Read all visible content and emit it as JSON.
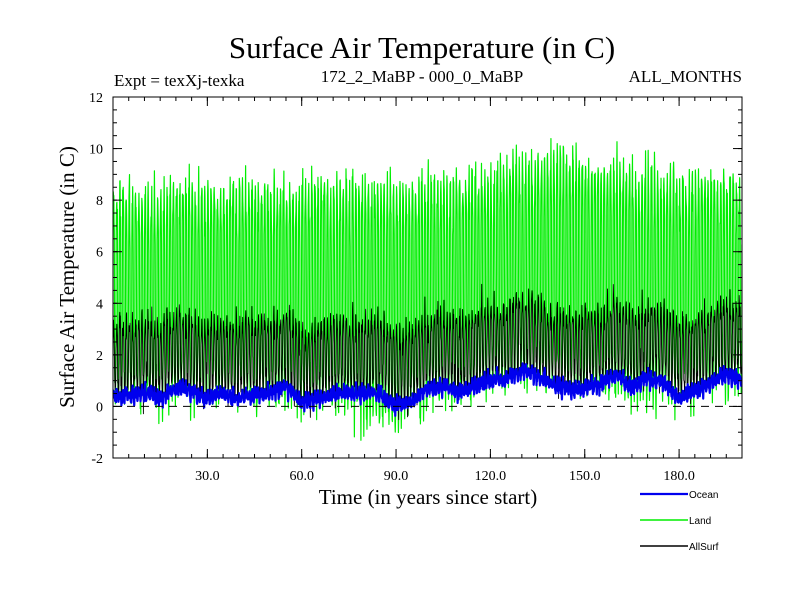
{
  "chart_data": {
    "type": "line",
    "title": "Surface Air Temperature (in C)",
    "subtitle_left": "Expt = texXj-texka",
    "subtitle_center": "172_2_MaBP - 000_0_MaBP",
    "subtitle_right": "ALL_MONTHS",
    "xlabel": "Time (in years since start)",
    "ylabel": "Surface Air Temperature (in C)",
    "xlim": [
      0,
      200
    ],
    "ylim": [
      -2,
      12
    ],
    "xticks": [
      30,
      60,
      90,
      120,
      150,
      180
    ],
    "xtick_labels": [
      "30.0",
      "60.0",
      "90.0",
      "120.0",
      "150.0",
      "180.0"
    ],
    "yticks": [
      -2,
      0,
      2,
      4,
      6,
      8,
      10,
      12
    ],
    "ytick_labels": [
      "-2",
      "0",
      "2",
      "4",
      "6",
      "8",
      "10",
      "12"
    ],
    "zero_line": 0,
    "samples_per_year": 12,
    "series": [
      {
        "name": "Land",
        "color": "#00ee00",
        "mean": 4.3,
        "seasonal_amplitude": 4.2,
        "noise": 0.8,
        "envelope_upper": [
          8.9,
          9.0,
          9.2,
          9.0,
          9.3,
          9.1,
          9.3,
          9.2,
          9.6,
          9.2,
          9.5,
          9.4,
          9.8,
          10.2,
          10.5,
          10.3,
          10.0,
          9.8,
          9.6,
          9.4,
          9.3
        ],
        "envelope_lower": [
          -0.2,
          -0.6,
          -0.3,
          -0.4,
          -0.2,
          -0.5,
          -0.4,
          -0.3,
          -1.5,
          -1.2,
          -0.4,
          -0.3,
          0.1,
          0.3,
          0.2,
          0.0,
          -0.2,
          -0.7,
          -0.3,
          0.0,
          0.2
        ]
      },
      {
        "name": "Ocean",
        "color": "#0000ee",
        "anchors_year": [
          0,
          5,
          10,
          15,
          20,
          25,
          30,
          35,
          40,
          45,
          50,
          55,
          60,
          65,
          70,
          75,
          80,
          85,
          90,
          95,
          100,
          105,
          110,
          115,
          120,
          125,
          130,
          135,
          140,
          145,
          150,
          155,
          160,
          165,
          170,
          175,
          180,
          185,
          190,
          195,
          200
        ],
        "anchors_value": [
          0.45,
          0.4,
          0.55,
          0.3,
          0.75,
          0.6,
          0.35,
          0.5,
          0.35,
          0.45,
          0.55,
          0.8,
          0.15,
          0.3,
          0.45,
          0.5,
          0.55,
          0.45,
          0.05,
          0.2,
          0.7,
          0.8,
          0.55,
          0.8,
          1.0,
          1.05,
          1.4,
          1.2,
          0.85,
          0.7,
          0.7,
          0.9,
          1.2,
          0.75,
          1.1,
          0.95,
          0.3,
          0.65,
          0.9,
          1.25,
          1.0
        ],
        "noise": 0.12,
        "seasonal_amplitude": 0.15
      },
      {
        "name": "AllSurf",
        "color": "#000000",
        "mean_offset_from_ocean": 1.5,
        "seasonal_amplitude": 1.3,
        "noise": 0.3
      }
    ],
    "legend": {
      "placement": "bottom-right",
      "entries": [
        {
          "name": "Ocean",
          "color": "#0000ee"
        },
        {
          "name": "Land",
          "color": "#00ee00"
        },
        {
          "name": "AllSurf",
          "color": "#000000"
        }
      ]
    }
  }
}
